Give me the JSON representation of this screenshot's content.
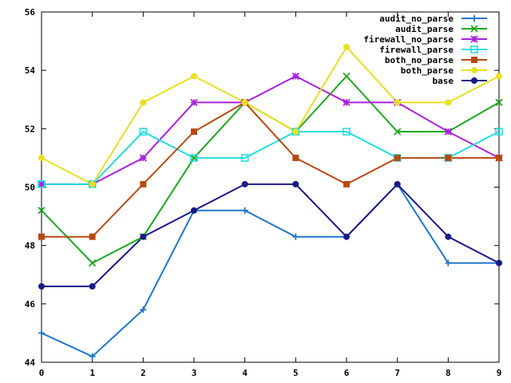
{
  "chart_data": {
    "type": "line",
    "title": "",
    "xlabel": "",
    "ylabel": "",
    "x": [
      0,
      1,
      2,
      3,
      4,
      5,
      6,
      7,
      8,
      9
    ],
    "xlim": [
      0,
      9
    ],
    "ylim": [
      44,
      56
    ],
    "x_ticks": [
      "0",
      "1",
      "2",
      "3",
      "4",
      "5",
      "6",
      "7",
      "8",
      "9"
    ],
    "y_ticks": [
      "44",
      "46",
      "48",
      "50",
      "52",
      "54",
      "56"
    ],
    "grid": false,
    "legend_position": "top-right",
    "series": [
      {
        "name": "audit_no_parse",
        "color": "#1f78c8",
        "marker": "plus",
        "values": [
          45.0,
          44.2,
          45.8,
          49.2,
          49.2,
          48.3,
          48.3,
          50.1,
          47.4,
          47.4
        ]
      },
      {
        "name": "audit_parse",
        "color": "#1fa81f",
        "marker": "x",
        "values": [
          49.2,
          47.4,
          48.3,
          51.0,
          52.9,
          51.9,
          53.8,
          51.9,
          51.9,
          52.9
        ]
      },
      {
        "name": "firewall_no_parse",
        "color": "#aa22dd",
        "marker": "star",
        "values": [
          50.1,
          50.1,
          51.0,
          52.9,
          52.9,
          53.8,
          52.9,
          52.9,
          51.9,
          51.0
        ]
      },
      {
        "name": "firewall_parse",
        "color": "#22dddd",
        "marker": "square-open",
        "values": [
          50.1,
          50.1,
          51.9,
          51.0,
          51.0,
          51.9,
          51.9,
          51.0,
          51.0,
          51.9
        ]
      },
      {
        "name": "both_no_parse",
        "color": "#b84a10",
        "marker": "square",
        "values": [
          48.3,
          48.3,
          50.1,
          51.9,
          52.9,
          51.0,
          50.1,
          51.0,
          51.0,
          51.0
        ]
      },
      {
        "name": "both_parse",
        "color": "#e8e020",
        "marker": "circle",
        "values": [
          51.0,
          50.1,
          52.9,
          53.8,
          52.9,
          51.9,
          54.8,
          52.9,
          52.9,
          53.8
        ]
      },
      {
        "name": "base",
        "color": "#1a1a88",
        "marker": "circle",
        "values": [
          46.6,
          46.6,
          48.3,
          49.2,
          50.1,
          50.1,
          48.3,
          50.1,
          48.3,
          47.4
        ]
      }
    ]
  }
}
